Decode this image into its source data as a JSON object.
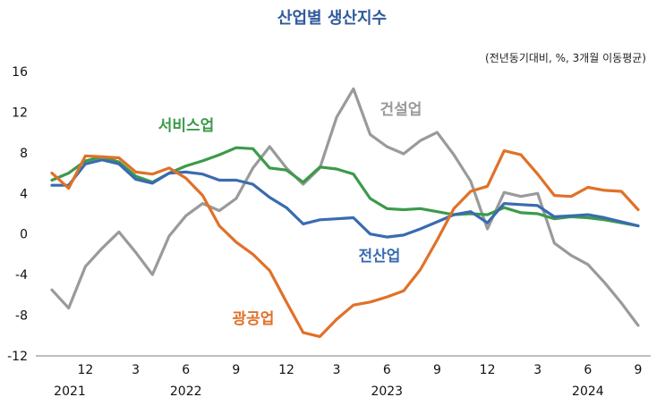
{
  "chart_data": {
    "type": "line",
    "title": "산업별 생산지수",
    "subtitle": "(전년동기대비, %, 3개월 이동평균)",
    "ylim": [
      -12,
      16
    ],
    "yticks": [
      "16",
      "12",
      "8",
      "4",
      "0",
      "-4",
      "-8",
      "-12"
    ],
    "ytick_values": [
      16,
      12,
      8,
      4,
      0,
      -4,
      -8,
      -12
    ],
    "xlim": [
      0,
      36
    ],
    "xticks": [
      {
        "label": "12",
        "x": 3
      },
      {
        "label": "3",
        "x": 6
      },
      {
        "label": "6",
        "x": 9
      },
      {
        "label": "9",
        "x": 12
      },
      {
        "label": "12",
        "x": 15
      },
      {
        "label": "3",
        "x": 18
      },
      {
        "label": "6",
        "x": 21
      },
      {
        "label": "9",
        "x": 24
      },
      {
        "label": "12",
        "x": 27
      },
      {
        "label": "3",
        "x": 30
      },
      {
        "label": "6",
        "x": 33
      },
      {
        "label": "9",
        "x": 36
      }
    ],
    "year_labels": [
      {
        "label": "2021",
        "x": 1
      },
      {
        "label": "2022",
        "x": 9
      },
      {
        "label": "2023",
        "x": 21
      },
      {
        "label": "2024",
        "x": 33
      }
    ],
    "grid": false,
    "series": [
      {
        "name": "건설업",
        "color": "#9a9a9a",
        "values": [
          -5.5,
          -7.3,
          -3.2,
          -1.4,
          0.2,
          -1.8,
          -4.0,
          -0.2,
          1.8,
          3.0,
          2.3,
          3.5,
          6.5,
          8.6,
          6.5,
          4.9,
          6.5,
          11.5,
          14.3,
          9.8,
          8.6,
          7.9,
          9.2,
          10.0,
          7.8,
          5.2,
          0.5,
          4.1,
          3.7,
          4.0,
          -0.9,
          -2.1,
          -3.0,
          -4.8,
          -6.8,
          -9.0
        ]
      },
      {
        "name": "서비스업",
        "color": "#3c9a4a",
        "values": [
          5.3,
          6.0,
          7.2,
          7.6,
          7.1,
          5.7,
          5.1,
          6.0,
          6.7,
          7.2,
          7.8,
          8.5,
          8.4,
          6.5,
          6.3,
          5.1,
          6.6,
          6.4,
          5.9,
          3.5,
          2.5,
          2.4,
          2.5,
          2.2,
          1.9,
          2.0,
          1.9,
          2.6,
          2.1,
          2.0,
          1.5,
          1.7,
          1.6,
          1.4,
          1.1,
          0.8
        ]
      },
      {
        "name": "전산업",
        "color": "#3a6bb0",
        "values": [
          4.8,
          4.8,
          6.9,
          7.3,
          6.9,
          5.4,
          5.0,
          6.0,
          6.1,
          5.9,
          5.3,
          5.3,
          4.9,
          3.6,
          2.6,
          1.0,
          1.4,
          1.5,
          1.6,
          0.0,
          -0.3,
          -0.1,
          0.5,
          1.2,
          1.9,
          2.2,
          1.1,
          3.0,
          2.9,
          2.8,
          1.7,
          1.8,
          1.9,
          1.6,
          1.2,
          0.8
        ]
      },
      {
        "name": "광공업",
        "color": "#e07128",
        "values": [
          6.0,
          4.5,
          7.7,
          7.6,
          7.5,
          6.1,
          5.9,
          6.5,
          5.5,
          3.8,
          0.8,
          -0.8,
          -2.0,
          -3.6,
          -6.7,
          -9.7,
          -10.1,
          -8.4,
          -7.0,
          -6.7,
          -6.2,
          -5.6,
          -3.5,
          -0.6,
          2.5,
          4.2,
          4.7,
          8.2,
          7.8,
          5.9,
          3.8,
          3.7,
          4.6,
          4.3,
          4.2,
          2.4
        ]
      }
    ],
    "annotations": [
      {
        "text": "건설업",
        "series": "건설업"
      },
      {
        "text": "서비스업",
        "series": "서비스업"
      },
      {
        "text": "전산업",
        "series": "전산업"
      },
      {
        "text": "광공업",
        "series": "광공업"
      }
    ]
  }
}
